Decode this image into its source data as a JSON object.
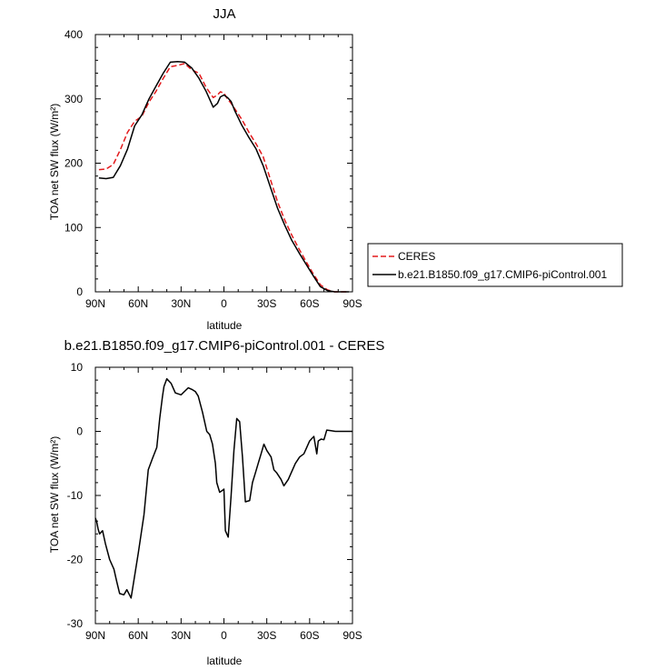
{
  "chart_data": [
    {
      "type": "line",
      "title": "JJA",
      "xlabel": "latitude",
      "ylabel": "TOA net SW flux (W/m²)",
      "xlim": [
        -90,
        90
      ],
      "ylim": [
        0,
        400
      ],
      "xticks": [
        -90,
        -60,
        -30,
        0,
        30,
        60,
        90
      ],
      "xtick_labels": [
        "90N",
        "60N",
        "30N",
        "0",
        "30S",
        "60S",
        "90S"
      ],
      "yticks": [
        0,
        100,
        200,
        300,
        400
      ],
      "ytick_labels": [
        "0",
        "100",
        "200",
        "300",
        "400"
      ],
      "grid": false,
      "legend_position": "right",
      "series": [
        {
          "name": "CERES",
          "color": "#e31a1c",
          "dash": "dashed",
          "x": [
            -87.5,
            -82.5,
            -77.5,
            -72.5,
            -67.5,
            -62.5,
            -57.5,
            -52.5,
            -47.5,
            -42.5,
            -37.5,
            -32.5,
            -27.5,
            -22.5,
            -17.5,
            -12.5,
            -7.5,
            -4.5,
            -2.5,
            0,
            2.5,
            5,
            7.5,
            12.5,
            17.5,
            22.5,
            27.5,
            32.5,
            37.5,
            42.5,
            47.5,
            52.5,
            57.5,
            62.5,
            67.5,
            72.5,
            77.5,
            82.5,
            87.5
          ],
          "y": [
            190,
            191,
            198,
            221,
            248,
            265,
            273,
            295,
            312,
            332,
            350,
            352,
            355,
            345,
            340,
            318,
            302,
            306,
            311,
            309,
            300,
            293,
            285,
            268,
            248,
            230,
            210,
            175,
            140,
            112,
            88,
            67,
            47,
            28,
            11,
            3,
            0,
            0,
            0
          ]
        },
        {
          "name": "b.e21.B1850.f09_g17.CMIP6-piControl.001",
          "color": "#000000",
          "dash": "solid",
          "x": [
            -87.5,
            -82.5,
            -77.5,
            -72.5,
            -67.5,
            -62.5,
            -57.5,
            -52.5,
            -47.5,
            -42.5,
            -37.5,
            -32.5,
            -27.5,
            -22.5,
            -17.5,
            -12.5,
            -7.5,
            -4.5,
            -2.5,
            0,
            2.5,
            5,
            7.5,
            12.5,
            17.5,
            22.5,
            27.5,
            32.5,
            37.5,
            42.5,
            47.5,
            52.5,
            57.5,
            62.5,
            67.5,
            72.5,
            77.5,
            82.5,
            87.5
          ],
          "y": [
            177,
            176,
            178,
            196,
            222,
            258,
            275,
            300,
            320,
            340,
            357,
            358,
            357,
            348,
            332,
            312,
            287,
            293,
            303,
            306,
            302,
            296,
            282,
            259,
            240,
            222,
            196,
            163,
            130,
            104,
            80,
            61,
            43,
            25,
            8,
            2,
            0,
            0,
            0
          ]
        }
      ]
    },
    {
      "type": "line",
      "title": "b.e21.B1850.f09_g17.CMIP6-piControl.001 - CERES",
      "xlabel": "latitude",
      "ylabel": "TOA net SW flux (W/m²)",
      "xlim": [
        -90,
        90
      ],
      "ylim": [
        -30,
        10
      ],
      "xticks": [
        -90,
        -60,
        -30,
        0,
        30,
        60,
        90
      ],
      "xtick_labels": [
        "90N",
        "60N",
        "30N",
        "0",
        "30S",
        "60S",
        "90S"
      ],
      "yticks": [
        -30,
        -20,
        -10,
        0,
        10
      ],
      "ytick_labels": [
        "-30",
        "-20",
        "-10",
        "0",
        "10"
      ],
      "grid": false,
      "series": [
        {
          "color": "#000000",
          "dash": "solid",
          "x": [
            -90,
            -89,
            -88,
            -87,
            -85,
            -83,
            -80,
            -77,
            -75,
            -73,
            -70,
            -68,
            -65,
            -60,
            -56,
            -53,
            -50,
            -47,
            -45,
            -43,
            -42,
            -40,
            -37,
            -34,
            -30,
            -25,
            -22,
            -20,
            -18,
            -15,
            -12,
            -10,
            -8,
            -6,
            -5,
            -3,
            -1,
            0,
            1,
            3,
            5,
            7,
            9,
            11,
            13,
            15,
            18,
            20,
            22,
            24,
            26,
            28,
            30,
            33,
            35,
            37,
            40,
            42,
            45,
            48,
            50,
            53,
            56,
            58,
            60,
            62,
            63,
            65,
            66,
            68,
            70,
            72,
            75,
            78,
            80,
            82,
            85,
            87,
            88,
            90
          ],
          "y": [
            -13.5,
            -14.2,
            -15.3,
            -16,
            -15.5,
            -17.5,
            -20,
            -21.5,
            -23.5,
            -25.3,
            -25.5,
            -24.7,
            -26,
            -19,
            -13,
            -6,
            -4.2,
            -2.5,
            2,
            5.5,
            7,
            8.2,
            7.5,
            6,
            5.7,
            6.8,
            6.5,
            6.2,
            5.5,
            3,
            0,
            -0.5,
            -2,
            -5,
            -8,
            -9.5,
            -9.2,
            -9,
            -15.5,
            -16.5,
            -10,
            -3,
            2,
            1.5,
            -4,
            -11,
            -10.8,
            -8,
            -6.5,
            -5,
            -3.5,
            -2,
            -3,
            -4,
            -6,
            -6.5,
            -7.5,
            -8.5,
            -7.5,
            -6,
            -5,
            -4,
            -3.5,
            -2.5,
            -1.5,
            -1,
            -0.8,
            -3.5,
            -1.5,
            -1.2,
            -1.3,
            0.2,
            0.1,
            0,
            0,
            0,
            0,
            0,
            0,
            0
          ]
        }
      ]
    }
  ]
}
